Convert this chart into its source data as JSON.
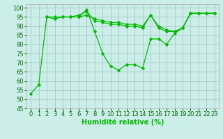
{
  "x": [
    0,
    1,
    2,
    3,
    4,
    5,
    6,
    7,
    8,
    9,
    10,
    11,
    12,
    13,
    14,
    15,
    16,
    17,
    18,
    19,
    20,
    21,
    22,
    23
  ],
  "line1": [
    53,
    58,
    95,
    95,
    95,
    95,
    95,
    99,
    87,
    75,
    68,
    66,
    69,
    69,
    67,
    83,
    83,
    80,
    86,
    89,
    97,
    97,
    97,
    97
  ],
  "line2": [
    null,
    null,
    95,
    94,
    95,
    95,
    96,
    98,
    93,
    92,
    91,
    91,
    90,
    90,
    89,
    96,
    89,
    87,
    87,
    89,
    97,
    97,
    97,
    97
  ],
  "line3": [
    null,
    null,
    null,
    null,
    null,
    null,
    95,
    96,
    94,
    93,
    92,
    92,
    91,
    91,
    90,
    96,
    90,
    88,
    87,
    89,
    97,
    97,
    97,
    97
  ],
  "line_color": "#00bb00",
  "bg_color": "#cceee8",
  "grid_color": "#aacccc",
  "ylim": [
    45,
    102
  ],
  "yticks": [
    45,
    50,
    55,
    60,
    65,
    70,
    75,
    80,
    85,
    90,
    95,
    100
  ],
  "xlabel": "Humidité relative (%)",
  "axis_fontsize": 7,
  "tick_fontsize": 6
}
